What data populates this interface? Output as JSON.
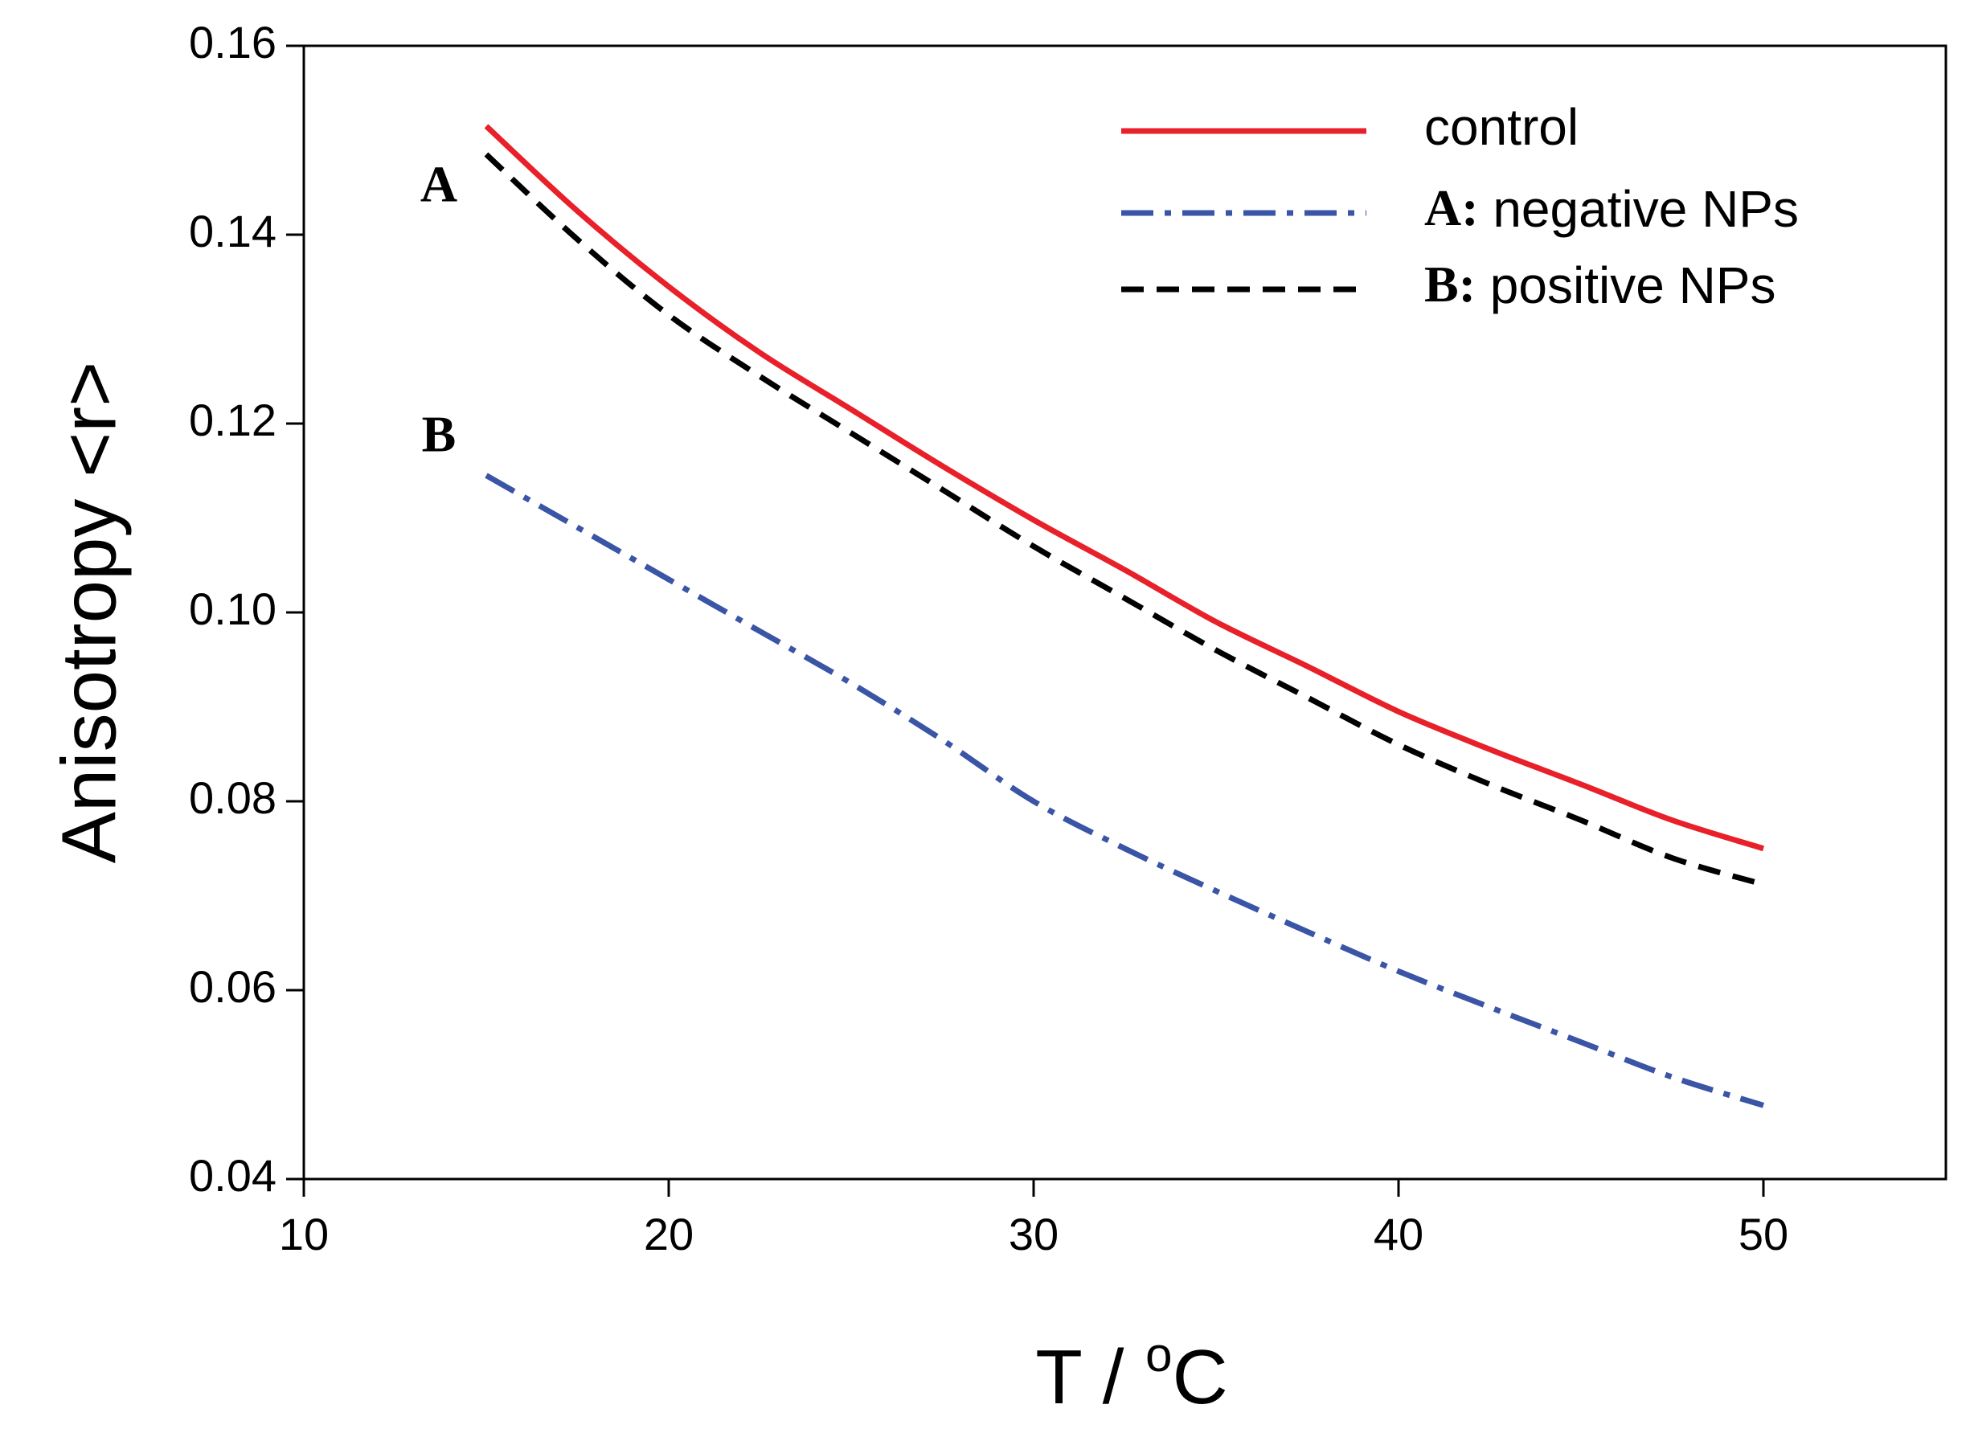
{
  "chart_data": {
    "type": "line",
    "title": "",
    "xlabel": "T / ",
    "xlabel_unit_sup": "o",
    "xlabel_unit": "C",
    "ylabel": "Anisotropy <r>",
    "xlim": [
      10,
      55
    ],
    "ylim": [
      0.04,
      0.16
    ],
    "xticks": [
      10,
      20,
      30,
      40,
      50
    ],
    "xtick_labels": [
      "10",
      "20",
      "30",
      "40",
      "50"
    ],
    "yticks": [
      0.04,
      0.06,
      0.08,
      0.1,
      0.12,
      0.14,
      0.16
    ],
    "ytick_labels": [
      "0.04",
      "0.06",
      "0.08",
      "0.10",
      "0.12",
      "0.14",
      "0.16"
    ],
    "grid": false,
    "legend_position": "top-right",
    "series": [
      {
        "name": "control",
        "legend_prefix": "",
        "legend_text": "control",
        "color": "#e8202a",
        "style": "solid",
        "x": [
          15,
          17.5,
          20,
          22.5,
          25,
          27.5,
          30,
          32.5,
          35,
          37.5,
          40,
          42.5,
          45,
          47.5,
          50
        ],
        "y": [
          0.1515,
          0.1425,
          0.1345,
          0.1275,
          0.1215,
          0.1155,
          0.1098,
          0.1045,
          0.099,
          0.0943,
          0.0895,
          0.0855,
          0.0818,
          0.078,
          0.075
        ]
      },
      {
        "name": "negative NPs",
        "legend_prefix": "A:",
        "legend_text": " negative NPs",
        "color": "#3b55a6",
        "style": "dashdot",
        "x": [
          15,
          17.5,
          20,
          22.5,
          25,
          27.5,
          30,
          32.5,
          35,
          37.5,
          40,
          42.5,
          45,
          47.5,
          50
        ],
        "y": [
          0.1145,
          0.109,
          0.1035,
          0.098,
          0.0925,
          0.0865,
          0.08,
          0.075,
          0.0705,
          0.0662,
          0.062,
          0.0582,
          0.0545,
          0.0508,
          0.0478
        ]
      },
      {
        "name": "positive NPs",
        "legend_prefix": "B:",
        "legend_text": " positive NPs",
        "color": "#000000",
        "style": "dashed",
        "x": [
          15,
          17.5,
          20,
          22.5,
          25,
          27.5,
          30,
          32.5,
          35,
          37.5,
          40,
          42.5,
          45,
          47.5,
          50
        ],
        "y": [
          0.1485,
          0.1395,
          0.1315,
          0.125,
          0.119,
          0.113,
          0.107,
          0.1015,
          0.096,
          0.091,
          0.086,
          0.0818,
          0.078,
          0.074,
          0.0712
        ]
      }
    ],
    "annotations": [
      {
        "text": "A",
        "x": 13.7,
        "y": 0.1448
      },
      {
        "text": "B",
        "x": 13.7,
        "y": 0.1183
      }
    ]
  }
}
